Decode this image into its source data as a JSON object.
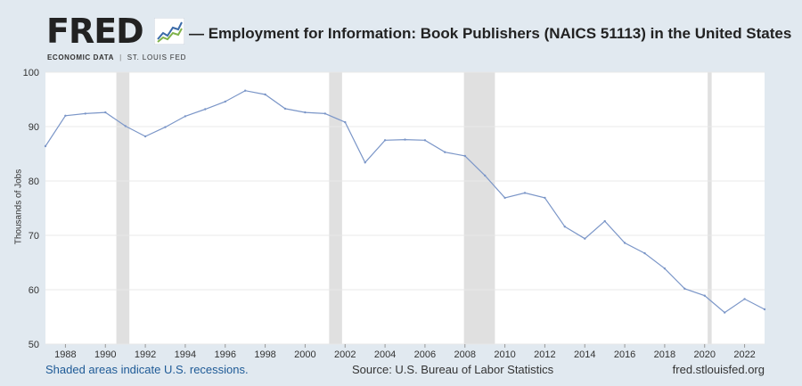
{
  "header": {
    "logo_text": "FRED",
    "logo_sub_left": "ECONOMIC DATA",
    "logo_sub_sep": "|",
    "logo_sub_right": "ST. LOUIS FED",
    "logo_icon": "trend-chart-icon",
    "title": "— Employment for Information: Book Publishers (NAICS 51113) in the United States"
  },
  "footer": {
    "note": "Shaded areas indicate U.S. recessions.",
    "source": "Source: U.S. Bureau of Labor Statistics",
    "url": "fred.stlouisfed.org"
  },
  "colors": {
    "page_background": "#e1e9f0",
    "plot_background": "#ffffff",
    "line": "#7b96c8",
    "recession_shade": "#e0e0e0",
    "grid": "#e8e8e8"
  },
  "chart_data": {
    "type": "line",
    "title": "Employment for Information: Book Publishers (NAICS 51113) in the United States",
    "xlabel": "",
    "ylabel": "Thousands of Jobs",
    "xlim": [
      1987,
      2023
    ],
    "ylim": [
      50,
      100
    ],
    "x_ticks": [
      1988,
      1990,
      1992,
      1994,
      1996,
      1998,
      2000,
      2002,
      2004,
      2006,
      2008,
      2010,
      2012,
      2014,
      2016,
      2018,
      2020,
      2022
    ],
    "y_ticks": [
      50,
      60,
      70,
      80,
      90,
      100
    ],
    "grid": "horizontal",
    "recessions": [
      [
        1990.55,
        1991.2
      ],
      [
        2001.2,
        2001.85
      ],
      [
        2007.95,
        2009.5
      ],
      [
        2020.15,
        2020.35
      ]
    ],
    "series": [
      {
        "x": [
          1987,
          1988,
          1989,
          1990,
          1991,
          1992,
          1993,
          1994,
          1995,
          1996,
          1997,
          1998,
          1999,
          2000,
          2001,
          2002,
          2003,
          2004,
          2005,
          2006,
          2007,
          2008,
          2009,
          2010,
          2011,
          2012,
          2013,
          2014,
          2015,
          2016,
          2017,
          2018,
          2019,
          2020,
          2021,
          2022,
          2023
        ],
        "values": [
          86.4,
          92.0,
          92.4,
          92.6,
          90.1,
          88.2,
          89.9,
          91.9,
          93.2,
          94.6,
          96.6,
          95.9,
          93.3,
          92.6,
          92.4,
          90.8,
          83.4,
          87.5,
          87.6,
          87.5,
          85.3,
          84.6,
          81.0,
          76.9,
          77.8,
          76.9,
          71.6,
          69.4,
          72.6,
          68.6,
          66.7,
          63.9,
          60.2,
          58.9,
          55.8,
          58.3,
          56.4
        ]
      }
    ]
  }
}
